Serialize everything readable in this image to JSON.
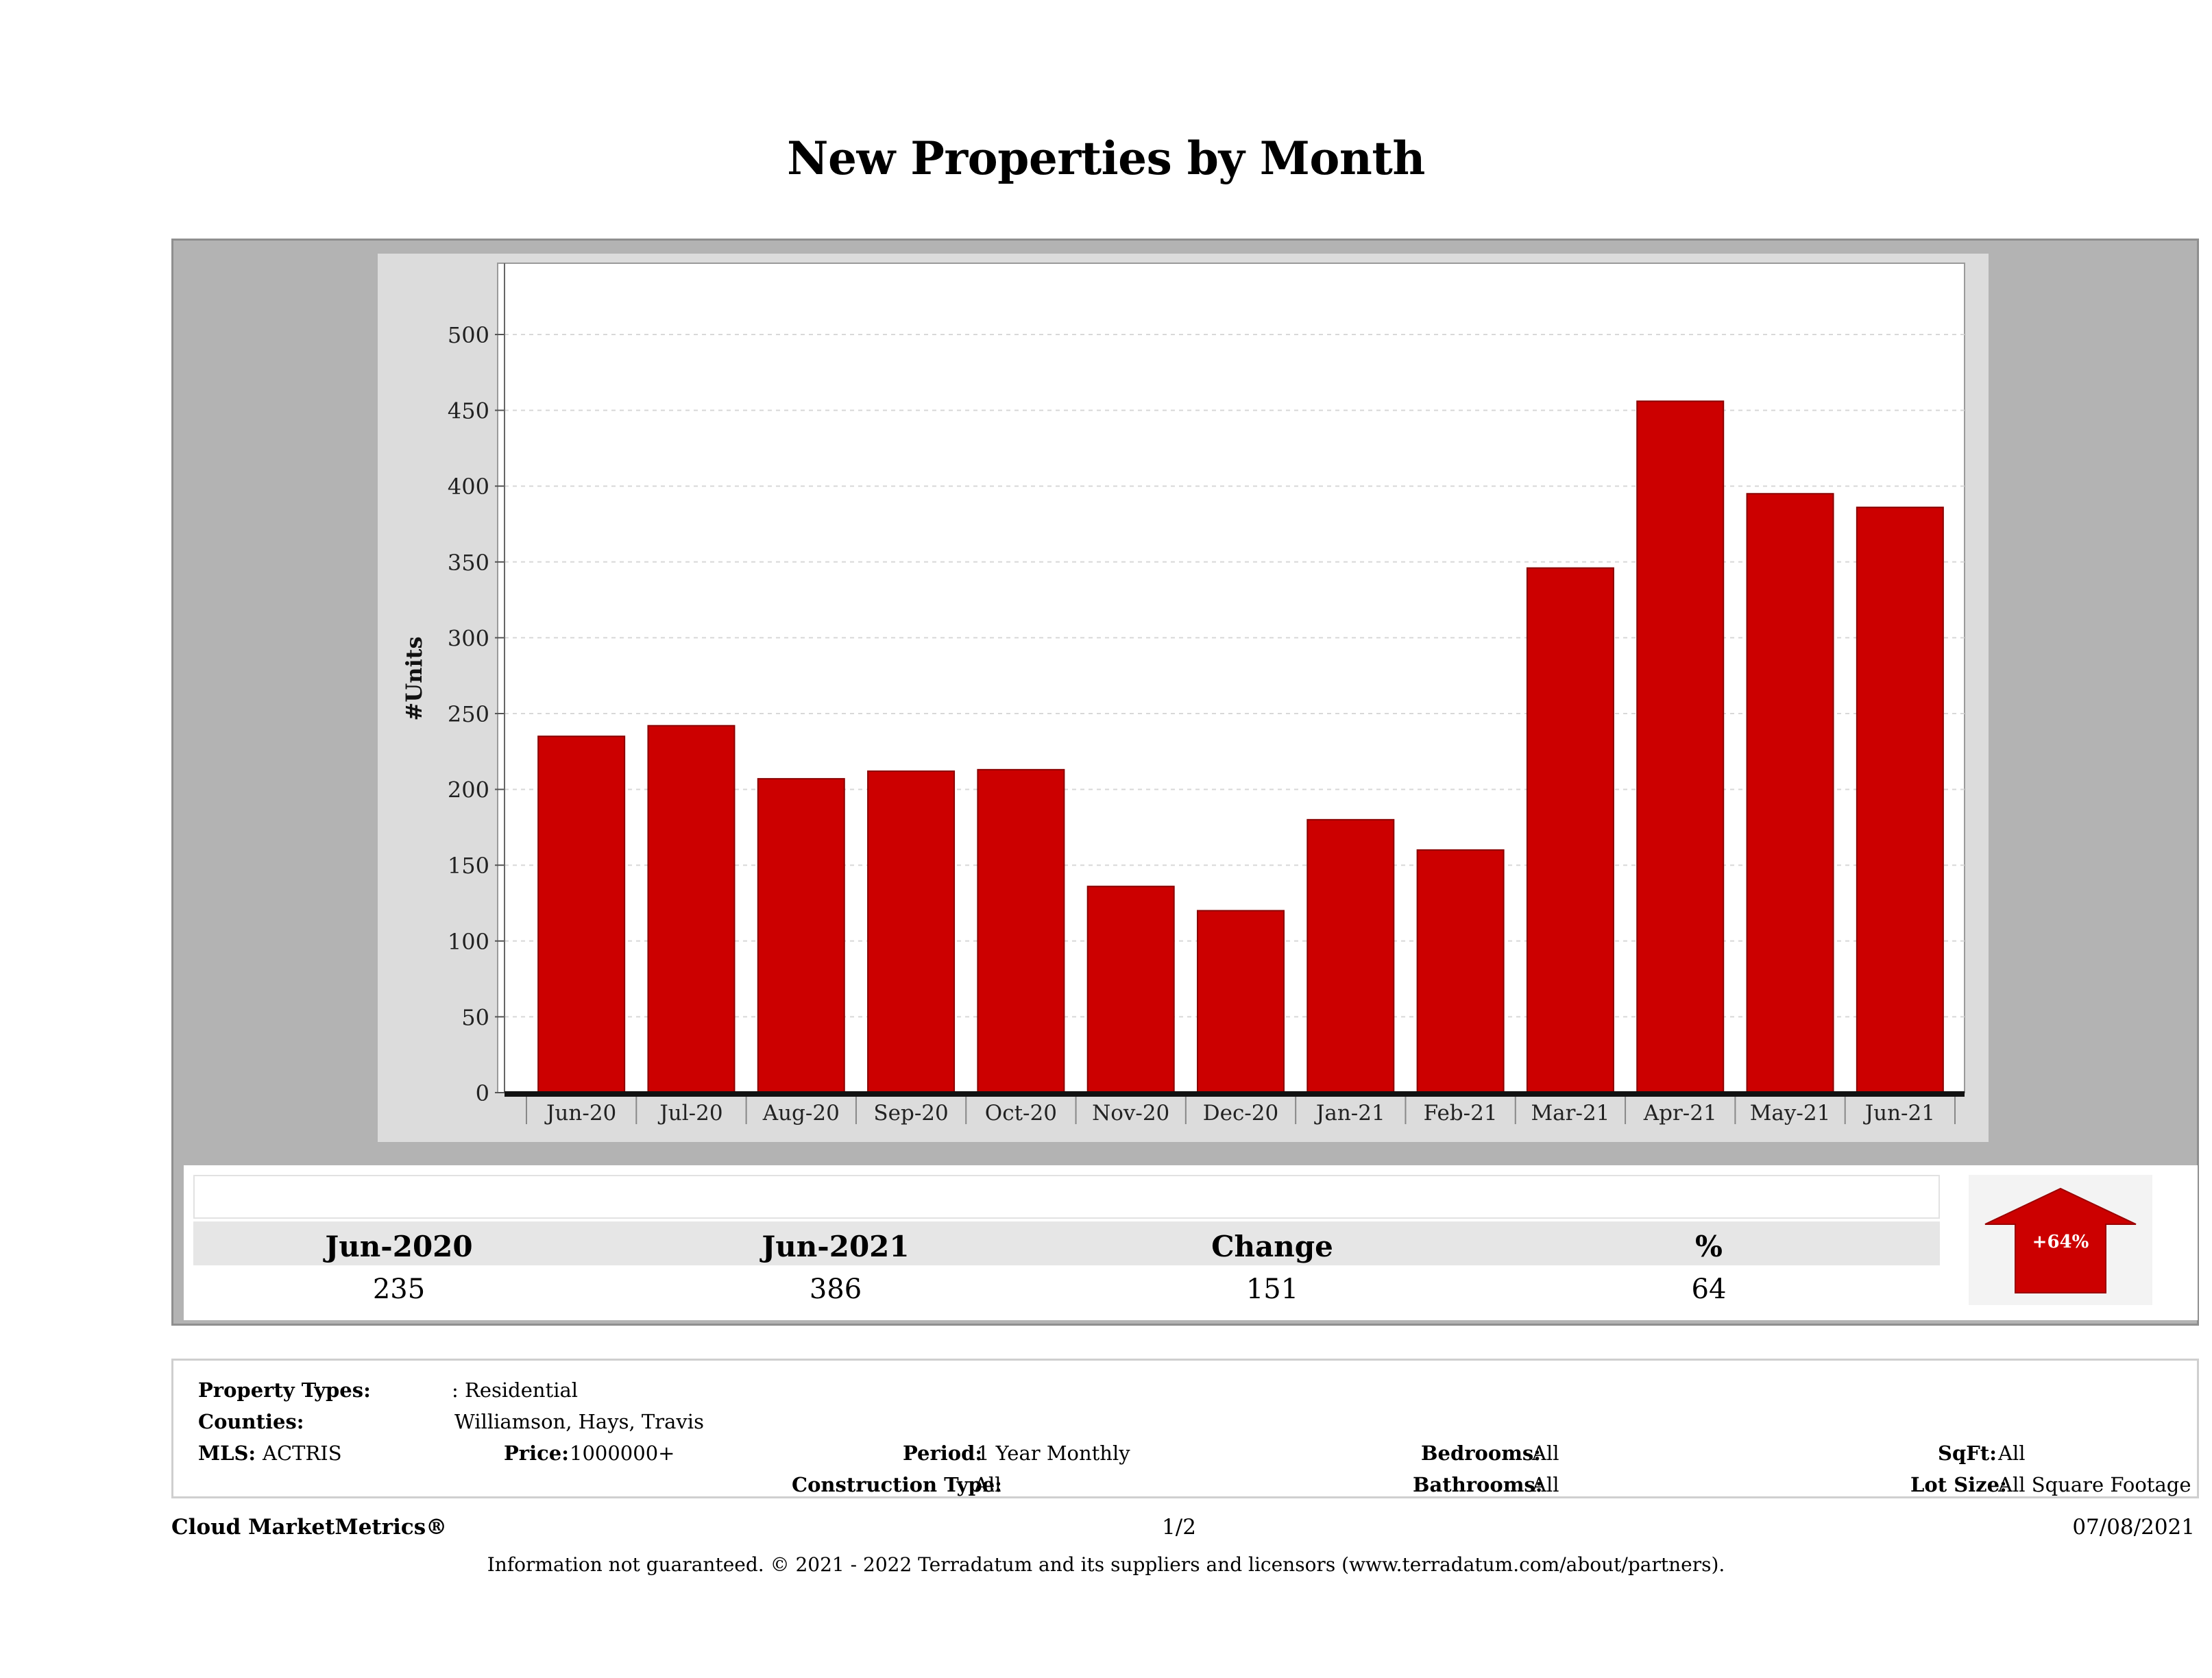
{
  "title": "New Properties by Month",
  "chart_data": {
    "type": "bar",
    "ylabel": "#Units",
    "xlabel": "",
    "ylim": [
      0,
      500
    ],
    "yticks": [
      0,
      50,
      100,
      150,
      200,
      250,
      300,
      350,
      400,
      450,
      500
    ],
    "grid": true,
    "categories": [
      "Jun-20",
      "Jul-20",
      "Aug-20",
      "Sep-20",
      "Oct-20",
      "Nov-20",
      "Dec-20",
      "Jan-21",
      "Feb-21",
      "Mar-21",
      "Apr-21",
      "May-21",
      "Jun-21"
    ],
    "values": [
      235,
      242,
      207,
      212,
      213,
      136,
      120,
      180,
      160,
      346,
      456,
      395,
      386
    ],
    "bar_color": "#cc0000"
  },
  "summary": {
    "headers": [
      "Jun-2020",
      "Jun-2021",
      "Change",
      "%"
    ],
    "values": [
      "235",
      "386",
      "151",
      "64"
    ],
    "badge": "+64%",
    "badge_direction": "up",
    "badge_color": "#cc0000"
  },
  "meta": {
    "property_types_label": "Property Types:",
    "property_types_value": ": Residential",
    "counties_label": "Counties:",
    "counties_value": "Williamson, Hays, Travis",
    "mls_label": "MLS:",
    "mls_value": "ACTRIS",
    "price_label": "Price:",
    "price_value": "1000000+",
    "period_label": "Period:",
    "period_value": "1 Year Monthly",
    "construction_label": "Construction Type:",
    "construction_value": "All",
    "bedrooms_label": "Bedrooms:",
    "bedrooms_value": "All",
    "bathrooms_label": "Bathrooms:",
    "bathrooms_value": "All",
    "sqft_label": "SqFt:",
    "sqft_value": "All",
    "lotsize_label": "Lot Size:",
    "lotsize_value": "All Square Footage"
  },
  "footer": {
    "brand": "Cloud MarketMetrics®",
    "page": "1/2",
    "date": "07/08/2021",
    "disclaimer": "Information not guaranteed. © 2021 - 2022 Terradatum and its suppliers and licensors (www.terradatum.com/about/partners)."
  }
}
